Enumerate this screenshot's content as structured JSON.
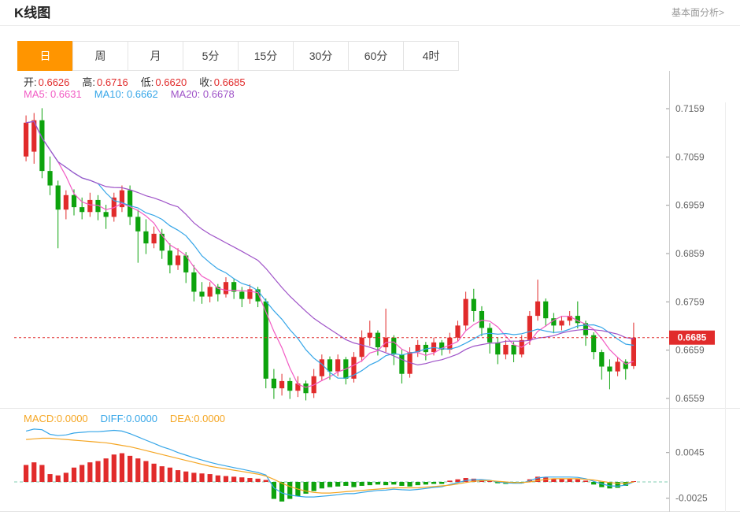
{
  "header": {
    "title": "K线图",
    "analysis_link": "基本面分析>"
  },
  "tabs": [
    {
      "name": "day",
      "label": "日",
      "active": true
    },
    {
      "name": "week",
      "label": "周",
      "active": false
    },
    {
      "name": "month",
      "label": "月",
      "active": false
    },
    {
      "name": "5min",
      "label": "5分",
      "active": false
    },
    {
      "name": "15min",
      "label": "15分",
      "active": false
    },
    {
      "name": "30min",
      "label": "30分",
      "active": false
    },
    {
      "name": "60min",
      "label": "60分",
      "active": false
    },
    {
      "name": "4hour",
      "label": "4时",
      "active": false
    }
  ],
  "ohlc": [
    {
      "label": "开:",
      "value": "0.6626"
    },
    {
      "label": "高:",
      "value": "0.6716"
    },
    {
      "label": "低:",
      "value": "0.6620"
    },
    {
      "label": "收:",
      "value": "0.6685"
    }
  ],
  "ma_readout": [
    {
      "name": "ma5",
      "label": "MA5:",
      "value": "0.6631"
    },
    {
      "name": "ma10",
      "label": "MA10:",
      "value": "0.6662"
    },
    {
      "name": "ma20",
      "label": "MA20:",
      "value": "0.6678"
    }
  ],
  "macd_readout": [
    {
      "name": "macd",
      "label": "MACD:",
      "value": "0.0000"
    },
    {
      "name": "diff",
      "label": "DIFF:",
      "value": "0.0000"
    },
    {
      "name": "dea",
      "label": "DEA:",
      "value": "0.0000"
    }
  ],
  "price_marker": "0.6685",
  "colors": {
    "up": "#e12b2b",
    "down": "#0da30d",
    "tab_active": "#ff9500",
    "ma5": "#f25bc4",
    "ma10": "#36a6e8",
    "ma20": "#9f53c8",
    "macd": "#f5a623",
    "diff": "#36a6e8",
    "dea": "#f5a623",
    "axis_text": "#666666",
    "zero_line": "#7fccb0"
  },
  "chart_data": {
    "type": "candlestick",
    "title": "K线图",
    "y_axis_labels": [
      "0.7159",
      "0.7059",
      "0.6959",
      "0.6859",
      "0.6759",
      "0.6659",
      "0.6559"
    ],
    "x_axis_labels": [],
    "current_price": 0.6685,
    "legend": [
      "MA5",
      "MA10",
      "MA20"
    ],
    "candles": [
      [
        0.706,
        0.7145,
        0.705,
        0.713
      ],
      [
        0.707,
        0.715,
        0.7045,
        0.7135
      ],
      [
        0.7135,
        0.716,
        0.7015,
        0.703
      ],
      [
        0.703,
        0.706,
        0.698,
        0.7
      ],
      [
        0.7,
        0.701,
        0.687,
        0.695
      ],
      [
        0.695,
        0.699,
        0.693,
        0.698
      ],
      [
        0.698,
        0.6992,
        0.6938,
        0.6955
      ],
      [
        0.6955,
        0.6975,
        0.693,
        0.6945
      ],
      [
        0.6945,
        0.6985,
        0.6935,
        0.697
      ],
      [
        0.697,
        0.698,
        0.6928,
        0.6945
      ],
      [
        0.6945,
        0.696,
        0.691,
        0.6935
      ],
      [
        0.6935,
        0.6985,
        0.6925,
        0.6975
      ],
      [
        0.6955,
        0.7,
        0.6945,
        0.699
      ],
      [
        0.699,
        0.7,
        0.6918,
        0.6935
      ],
      [
        0.6935,
        0.695,
        0.684,
        0.6905
      ],
      [
        0.6905,
        0.693,
        0.6858,
        0.688
      ],
      [
        0.688,
        0.6915,
        0.687,
        0.69
      ],
      [
        0.69,
        0.691,
        0.6848,
        0.6865
      ],
      [
        0.6865,
        0.688,
        0.6818,
        0.6835
      ],
      [
        0.6835,
        0.687,
        0.6825,
        0.6855
      ],
      [
        0.6855,
        0.6862,
        0.6798,
        0.682
      ],
      [
        0.682,
        0.6835,
        0.676,
        0.678
      ],
      [
        0.678,
        0.68,
        0.6755,
        0.677
      ],
      [
        0.677,
        0.68,
        0.6758,
        0.679
      ],
      [
        0.679,
        0.6796,
        0.676,
        0.6775
      ],
      [
        0.6775,
        0.681,
        0.6768,
        0.68
      ],
      [
        0.68,
        0.6806,
        0.6765,
        0.678
      ],
      [
        0.678,
        0.679,
        0.6748,
        0.6765
      ],
      [
        0.6765,
        0.6795,
        0.6755,
        0.6785
      ],
      [
        0.6785,
        0.679,
        0.6748,
        0.676
      ],
      [
        0.676,
        0.6766,
        0.658,
        0.66
      ],
      [
        0.66,
        0.662,
        0.6558,
        0.658
      ],
      [
        0.658,
        0.661,
        0.6565,
        0.6595
      ],
      [
        0.6595,
        0.6602,
        0.6558,
        0.6575
      ],
      [
        0.6575,
        0.6605,
        0.6562,
        0.659
      ],
      [
        0.659,
        0.6596,
        0.6555,
        0.657
      ],
      [
        0.657,
        0.662,
        0.656,
        0.6605
      ],
      [
        0.6605,
        0.665,
        0.6595,
        0.664
      ],
      [
        0.664,
        0.6646,
        0.6598,
        0.6615
      ],
      [
        0.6615,
        0.665,
        0.6605,
        0.664
      ],
      [
        0.664,
        0.6645,
        0.6588,
        0.66
      ],
      [
        0.66,
        0.6655,
        0.6592,
        0.6645
      ],
      [
        0.6645,
        0.67,
        0.6635,
        0.6685
      ],
      [
        0.6685,
        0.672,
        0.6668,
        0.6695
      ],
      [
        0.6695,
        0.67,
        0.6648,
        0.6665
      ],
      [
        0.6665,
        0.6745,
        0.6655,
        0.6685
      ],
      [
        0.6685,
        0.669,
        0.6628,
        0.665
      ],
      [
        0.665,
        0.666,
        0.659,
        0.661
      ],
      [
        0.661,
        0.6665,
        0.6602,
        0.6655
      ],
      [
        0.6655,
        0.668,
        0.6645,
        0.667
      ],
      [
        0.667,
        0.6676,
        0.6638,
        0.6655
      ],
      [
        0.6655,
        0.6685,
        0.6648,
        0.6675
      ],
      [
        0.6675,
        0.668,
        0.6648,
        0.666
      ],
      [
        0.666,
        0.6695,
        0.6652,
        0.6685
      ],
      [
        0.6685,
        0.672,
        0.6678,
        0.671
      ],
      [
        0.671,
        0.678,
        0.67,
        0.6765
      ],
      [
        0.6765,
        0.6786,
        0.6718,
        0.674
      ],
      [
        0.674,
        0.675,
        0.6688,
        0.6705
      ],
      [
        0.6705,
        0.6715,
        0.6652,
        0.6675
      ],
      [
        0.6675,
        0.6686,
        0.663,
        0.665
      ],
      [
        0.665,
        0.668,
        0.664,
        0.667
      ],
      [
        0.667,
        0.6676,
        0.6634,
        0.665
      ],
      [
        0.665,
        0.669,
        0.6644,
        0.668
      ],
      [
        0.668,
        0.674,
        0.667,
        0.673
      ],
      [
        0.673,
        0.6805,
        0.672,
        0.676
      ],
      [
        0.676,
        0.6766,
        0.6708,
        0.6725
      ],
      [
        0.6725,
        0.6736,
        0.6694,
        0.671
      ],
      [
        0.671,
        0.673,
        0.67,
        0.672
      ],
      [
        0.672,
        0.674,
        0.671,
        0.673
      ],
      [
        0.673,
        0.676,
        0.6704,
        0.6715
      ],
      [
        0.6715,
        0.672,
        0.6668,
        0.669
      ],
      [
        0.669,
        0.6696,
        0.664,
        0.6655
      ],
      [
        0.6655,
        0.666,
        0.6598,
        0.6625
      ],
      [
        0.6625,
        0.664,
        0.6578,
        0.6615
      ],
      [
        0.6615,
        0.6645,
        0.6605,
        0.6635
      ],
      [
        0.6635,
        0.664,
        0.6598,
        0.662
      ],
      [
        0.6626,
        0.6716,
        0.662,
        0.6685
      ]
    ],
    "macd": {
      "axis_labels": [
        "0.0045",
        "-0.0025"
      ],
      "hist": [
        0.0026,
        0.003,
        0.0026,
        0.0012,
        0.001,
        0.0014,
        0.0022,
        0.0026,
        0.003,
        0.0032,
        0.0036,
        0.0042,
        0.0044,
        0.004,
        0.0036,
        0.0032,
        0.0028,
        0.0024,
        0.0022,
        0.0018,
        0.0016,
        0.0014,
        0.0013,
        0.0012,
        0.001,
        0.0009,
        0.0008,
        0.0007,
        0.0006,
        0.0005,
        0.0003,
        -0.0026,
        -0.003,
        -0.0026,
        -0.0022,
        -0.0018,
        -0.0014,
        -0.001,
        -0.0008,
        -0.0007,
        -0.0006,
        -0.0008,
        -0.0006,
        -0.0005,
        -0.0004,
        -0.0005,
        -0.0004,
        -0.0006,
        -0.0007,
        -0.0005,
        -0.0004,
        -0.0003,
        -0.0003,
        0.0002,
        0.0004,
        0.0006,
        0.0005,
        0.0003,
        0.0001,
        -0.0002,
        -0.0003,
        -0.0002,
        -0.0002,
        0.0004,
        0.0008,
        0.0007,
        0.0005,
        0.0005,
        0.0005,
        0.0004,
        0.0002,
        -0.0004,
        -0.0008,
        -0.001,
        -0.0009,
        -0.0006,
        0.0
      ],
      "dea": [
        0.0065,
        0.0066,
        0.0067,
        0.0067,
        0.0066,
        0.0065,
        0.0064,
        0.0063,
        0.0062,
        0.0061,
        0.006,
        0.0058,
        0.0056,
        0.0054,
        0.0051,
        0.0048,
        0.0045,
        0.0042,
        0.0039,
        0.0036,
        0.0033,
        0.003,
        0.0027,
        0.0024,
        0.0022,
        0.002,
        0.0018,
        0.0016,
        0.0014,
        0.0012,
        0.0009,
        0.0004,
        -0.0002,
        -0.0007,
        -0.0011,
        -0.0014,
        -0.0016,
        -0.0017,
        -0.0017,
        -0.0016,
        -0.0015,
        -0.0014,
        -0.0013,
        -0.0012,
        -0.0011,
        -0.001,
        -0.0009,
        -0.0009,
        -0.0009,
        -0.0009,
        -0.0008,
        -0.0007,
        -0.0006,
        -0.0005,
        -0.0003,
        -0.0001,
        0.0001,
        0.0002,
        0.0002,
        0.0001,
        0.0,
        -0.0001,
        -0.0001,
        0.0,
        0.0002,
        0.0004,
        0.0005,
        0.0005,
        0.0005,
        0.0005,
        0.0004,
        0.0003,
        0.0001,
        -0.0001,
        -0.0002,
        -0.0002,
        0.0
      ]
    }
  }
}
